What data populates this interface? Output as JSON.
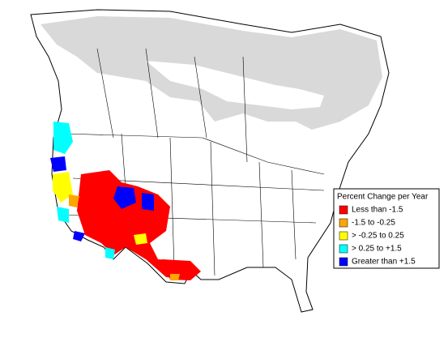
{
  "legend": {
    "title": "Percent Change per Year",
    "items": [
      {
        "label": "Less than -1.5",
        "color": "#ff0000"
      },
      {
        "label": "-1.5 to -0.25",
        "color": "#ffa500"
      },
      {
        "label": "> -0.25 to 0.25",
        "color": "#ffff00"
      },
      {
        "label": "> 0.25 to +1.5",
        "color": "#00ffff"
      },
      {
        "label": "Greater than +1.5",
        "color": "#0000ff"
      }
    ]
  }
}
